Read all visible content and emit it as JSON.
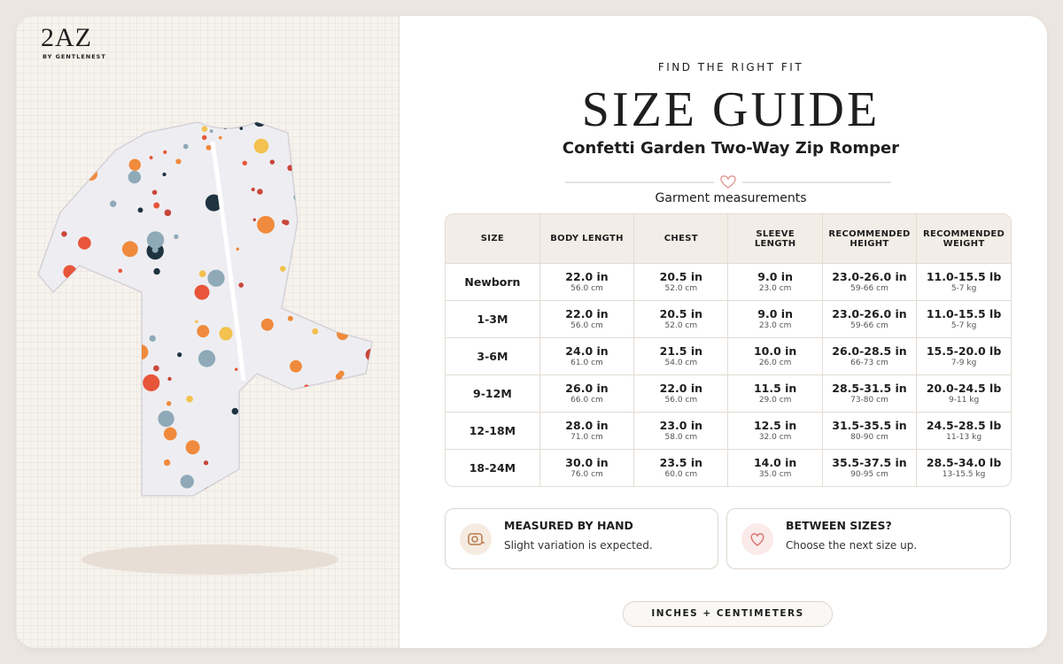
{
  "brand": {
    "name": "2AZ",
    "tagline": "BY GENTLENEST"
  },
  "header": {
    "eyebrow": "FIND THE RIGHT FIT",
    "title": "SIZE GUIDE",
    "subtitle": "Confetti Garden Two-Way Zip Romper",
    "section_label": "Garment measurements"
  },
  "table": {
    "columns": [
      "SIZE",
      "BODY LENGTH",
      "CHEST",
      "SLEEVE LENGTH",
      "RECOMMENDED HEIGHT",
      "RECOMMENDED WEIGHT"
    ],
    "rows": [
      {
        "size": "Newborn",
        "cells": [
          [
            "22.0 in",
            "56.0 cm"
          ],
          [
            "20.5 in",
            "52.0 cm"
          ],
          [
            "9.0 in",
            "23.0 cm"
          ],
          [
            "23.0-26.0 in",
            "59-66 cm"
          ],
          [
            "11.0-15.5 lb",
            "5-7 kg"
          ]
        ]
      },
      {
        "size": "1-3M",
        "cells": [
          [
            "22.0 in",
            "56.0 cm"
          ],
          [
            "20.5 in",
            "52.0 cm"
          ],
          [
            "9.0 in",
            "23.0 cm"
          ],
          [
            "23.0-26.0 in",
            "59-66 cm"
          ],
          [
            "11.0-15.5 lb",
            "5-7 kg"
          ]
        ]
      },
      {
        "size": "3-6M",
        "cells": [
          [
            "24.0 in",
            "61.0 cm"
          ],
          [
            "21.5 in",
            "54.0 cm"
          ],
          [
            "10.0 in",
            "26.0 cm"
          ],
          [
            "26.0-28.5 in",
            "66-73 cm"
          ],
          [
            "15.5-20.0 lb",
            "7-9 kg"
          ]
        ]
      },
      {
        "size": "9-12M",
        "cells": [
          [
            "26.0 in",
            "66.0 cm"
          ],
          [
            "22.0 in",
            "56.0 cm"
          ],
          [
            "11.5 in",
            "29.0 cm"
          ],
          [
            "28.5-31.5 in",
            "73-80 cm"
          ],
          [
            "20.0-24.5 lb",
            "9-11 kg"
          ]
        ]
      },
      {
        "size": "12-18M",
        "cells": [
          [
            "28.0 in",
            "71.0 cm"
          ],
          [
            "23.0 in",
            "58.0 cm"
          ],
          [
            "12.5 in",
            "32.0 cm"
          ],
          [
            "31.5-35.5 in",
            "80-90 cm"
          ],
          [
            "24.5-28.5 lb",
            "11-13 kg"
          ]
        ]
      },
      {
        "size": "18-24M",
        "cells": [
          [
            "30.0 in",
            "76.0 cm"
          ],
          [
            "23.5 in",
            "60.0 cm"
          ],
          [
            "14.0 in",
            "35.0 cm"
          ],
          [
            "35.5-37.5 in",
            "90-95 cm"
          ],
          [
            "28.5-34.0 lb",
            "13-15.5 kg"
          ]
        ]
      }
    ]
  },
  "notes": [
    {
      "heading": "MEASURED BY HAND",
      "text": "Slight variation is expected."
    },
    {
      "heading": "BETWEEN SIZES?",
      "text": "Choose the next size up."
    }
  ],
  "unit_toggle": "INCHES + CENTIMETERS"
}
